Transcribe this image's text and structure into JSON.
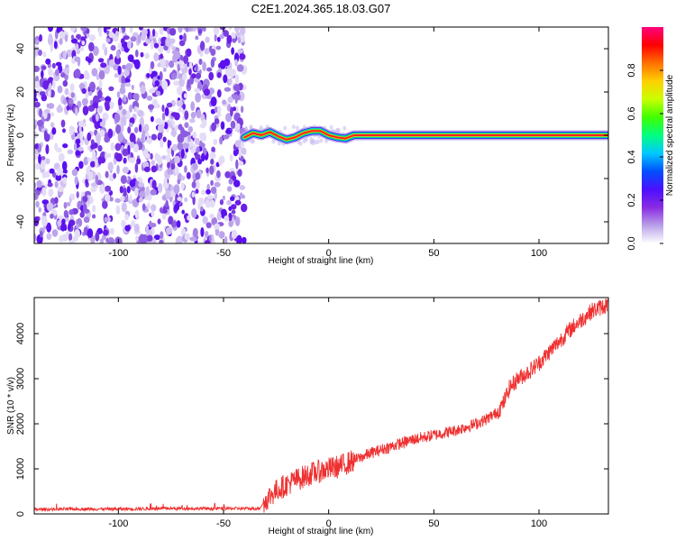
{
  "title": "C2E1.2024.365.18.03.G07",
  "chart_data": [
    {
      "type": "heatmap",
      "xlabel": "Height of straight line (km)",
      "ylabel": "Frequency (Hz)",
      "xlim": [
        -140,
        133
      ],
      "ylim": [
        -50,
        50
      ],
      "xticks": [
        -100,
        -50,
        0,
        50,
        100
      ],
      "yticks": [
        -40,
        -20,
        0,
        20,
        40
      ],
      "grid": false,
      "description_regions": [
        {
          "x_range": [
            -140,
            -40
          ],
          "pattern": "scattered noise across all frequencies"
        },
        {
          "x_range": [
            -40,
            12
          ],
          "pattern": "narrow band near 0 Hz with small oscillation"
        },
        {
          "x_range": [
            12,
            133
          ],
          "pattern": "steady narrow line at 0 Hz"
        }
      ],
      "line_points": [
        {
          "x": -40,
          "y": -1
        },
        {
          "x": -36,
          "y": 1
        },
        {
          "x": -32,
          "y": 0
        },
        {
          "x": -28,
          "y": 1.5
        },
        {
          "x": -24,
          "y": -0.5
        },
        {
          "x": -20,
          "y": -2
        },
        {
          "x": -16,
          "y": -1
        },
        {
          "x": -12,
          "y": 1
        },
        {
          "x": -8,
          "y": 2
        },
        {
          "x": -4,
          "y": 2
        },
        {
          "x": 0,
          "y": 0
        },
        {
          "x": 4,
          "y": -1
        },
        {
          "x": 8,
          "y": -1.5
        },
        {
          "x": 12,
          "y": 0
        },
        {
          "x": 133,
          "y": 0
        }
      ],
      "colorbar": {
        "label": "Normalized spectral amplitude",
        "range": [
          0,
          1
        ],
        "ticks": [
          "0.0",
          "0.2",
          "0.4",
          "0.6",
          "0.8"
        ],
        "colors": [
          "#ffffff",
          "#b8a0e8",
          "#8a2be2",
          "#4b0fff",
          "#0050ff",
          "#00c8ff",
          "#00ff80",
          "#40ff00",
          "#c8ff00",
          "#ffd000",
          "#ff7000",
          "#ff0000",
          "#ff0080"
        ]
      }
    },
    {
      "type": "line",
      "xlabel": "Height of straight line (km)",
      "ylabel": "SNR (10 * v/v)",
      "xlim": [
        -140,
        133
      ],
      "ylim": [
        0,
        4800
      ],
      "xticks": [
        -100,
        -50,
        0,
        50,
        100
      ],
      "yticks": [
        0,
        1000,
        2000,
        3000,
        4000
      ],
      "grid": false,
      "series": [
        {
          "color": "#ef3030",
          "x": [
            -140,
            -120,
            -100,
            -80,
            -60,
            -40,
            -33,
            -31,
            -28,
            -24,
            -20,
            -16,
            -12,
            -8,
            -4,
            0,
            5,
            10,
            15,
            20,
            30,
            40,
            50,
            60,
            70,
            75,
            80,
            83,
            86,
            90,
            95,
            100,
            105,
            110,
            115,
            120,
            125,
            133
          ],
          "y": [
            100,
            110,
            110,
            120,
            120,
            120,
            120,
            250,
            400,
            550,
            650,
            750,
            820,
            900,
            950,
            1000,
            1050,
            1150,
            1250,
            1350,
            1500,
            1650,
            1750,
            1850,
            2000,
            2100,
            2250,
            2450,
            2800,
            3000,
            3150,
            3350,
            3600,
            3850,
            4100,
            4300,
            4500,
            4650
          ]
        }
      ]
    }
  ]
}
